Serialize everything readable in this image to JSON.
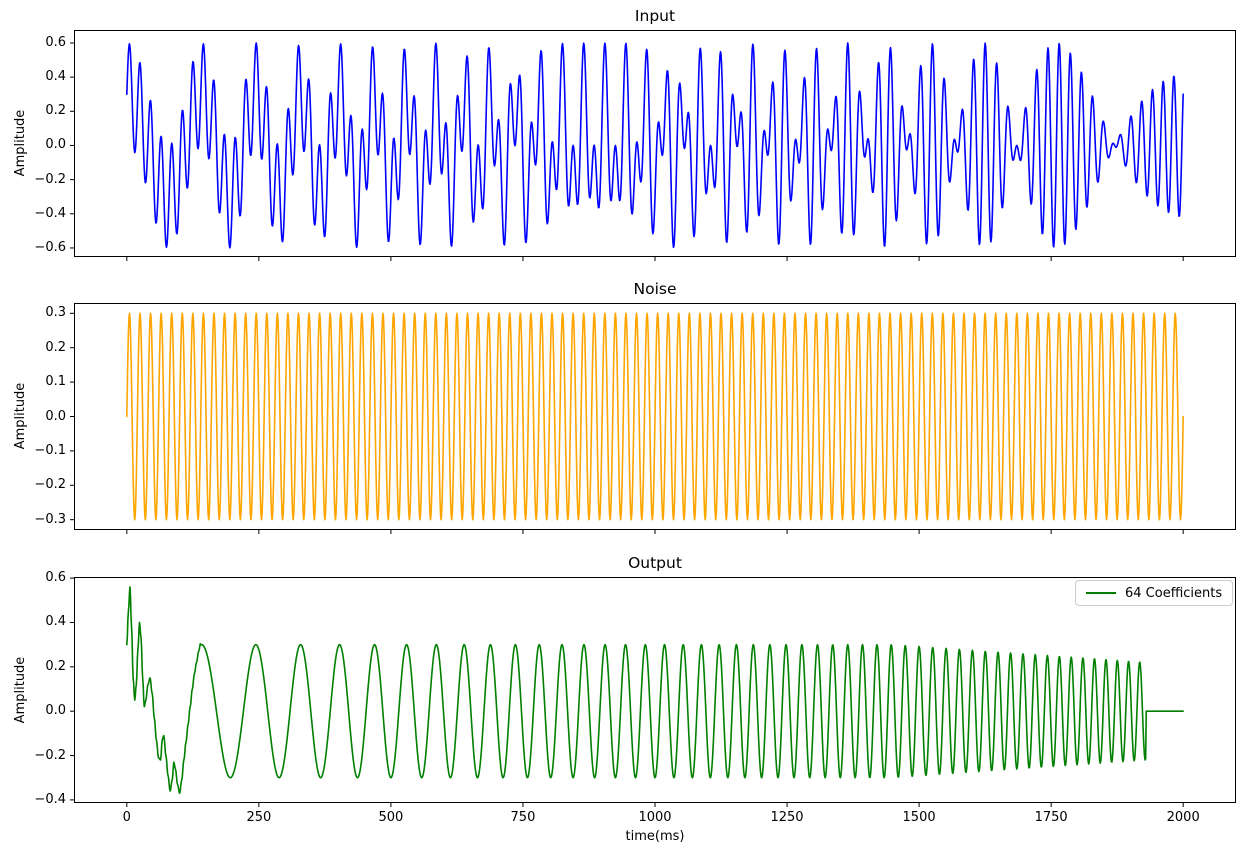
{
  "chart_data": [
    {
      "id": "input",
      "type": "line",
      "title": "Input",
      "ylabel": "Amplitude",
      "line_color": "#0000ff",
      "xlim": [
        -100,
        2100
      ],
      "ylim": [
        -0.653,
        0.676
      ],
      "xticks": [
        0,
        250,
        500,
        750,
        1000,
        1250,
        1500,
        1750,
        2000
      ],
      "yticks": [
        0.6,
        0.4,
        0.2,
        0.0,
        -0.2,
        -0.4,
        -0.6
      ],
      "ytick_decimals": 1,
      "show_x_tick_labels": false,
      "grid": false,
      "signal": {
        "kind": "sum",
        "duration_ms": 2000,
        "sample_interval_ms": 1,
        "components": [
          {
            "shape": "chirp",
            "func": "cos",
            "amplitude": 0.3,
            "start_freq_hz": 5.5,
            "sweep_hz_per_s": 22
          },
          {
            "shape": "sine",
            "amplitude": 0.3,
            "freq_hz": 50
          }
        ]
      }
    },
    {
      "id": "noise",
      "type": "line",
      "title": "Noise",
      "ylabel": "Amplitude",
      "line_color": "#ffa500",
      "xlim": [
        -100,
        2100
      ],
      "ylim": [
        -0.33,
        0.33
      ],
      "xticks": [
        0,
        250,
        500,
        750,
        1000,
        1250,
        1500,
        1750,
        2000
      ],
      "yticks": [
        0.3,
        0.2,
        0.1,
        0.0,
        -0.1,
        -0.2,
        -0.3
      ],
      "ytick_decimals": 1,
      "show_x_tick_labels": false,
      "grid": false,
      "signal": {
        "kind": "sum",
        "duration_ms": 2000,
        "sample_interval_ms": 1,
        "components": [
          {
            "shape": "sine",
            "amplitude": 0.3,
            "freq_hz": 50
          }
        ]
      }
    },
    {
      "id": "output",
      "type": "line",
      "title": "Output",
      "ylabel": "Amplitude",
      "xlabel": "time(ms)",
      "line_color": "#008000",
      "legend": {
        "label": "64 Coefficients",
        "position": "upper right"
      },
      "xlim": [
        -100,
        2100
      ],
      "ylim": [
        -0.414,
        0.605
      ],
      "xticks": [
        0,
        250,
        500,
        750,
        1000,
        1250,
        1500,
        1750,
        2000
      ],
      "yticks": [
        0.6,
        0.4,
        0.2,
        0.0,
        -0.2,
        -0.4
      ],
      "ytick_decimals": 1,
      "show_x_tick_labels": true,
      "grid": false,
      "signal": {
        "kind": "adaptive_output",
        "duration_ms": 2000,
        "sample_interval_ms": 1,
        "base": {
          "shape": "chirp",
          "func": "cos",
          "amplitude": 0.3,
          "start_freq_hz": 5.5,
          "sweep_hz_per_s": 22
        },
        "transient_anchors": [
          [
            0,
            0.3
          ],
          [
            3,
            0.45
          ],
          [
            6,
            0.56
          ],
          [
            9,
            0.38
          ],
          [
            12,
            0.15
          ],
          [
            15,
            0.05
          ],
          [
            18,
            0.12
          ],
          [
            21,
            0.28
          ],
          [
            24,
            0.4
          ],
          [
            27,
            0.33
          ],
          [
            30,
            0.15
          ],
          [
            33,
            0.02
          ],
          [
            36,
            0.05
          ],
          [
            40,
            0.12
          ],
          [
            44,
            0.15
          ],
          [
            48,
            0.08
          ],
          [
            52,
            -0.03
          ],
          [
            56,
            -0.13
          ],
          [
            60,
            -0.21
          ],
          [
            64,
            -0.22
          ],
          [
            67,
            -0.13
          ],
          [
            70,
            -0.11
          ],
          [
            74,
            -0.2
          ],
          [
            78,
            -0.29
          ],
          [
            82,
            -0.36
          ],
          [
            86,
            -0.31
          ],
          [
            89,
            -0.23
          ],
          [
            92,
            -0.26
          ],
          [
            96,
            -0.33
          ],
          [
            100,
            -0.37
          ],
          [
            104,
            -0.31
          ],
          [
            108,
            -0.22
          ],
          [
            112,
            -0.14
          ],
          [
            116,
            -0.06
          ],
          [
            120,
            0.02
          ],
          [
            124,
            0.1
          ],
          [
            128,
            0.17
          ],
          [
            132,
            0.22
          ],
          [
            136,
            0.27
          ],
          [
            140,
            0.31
          ]
        ],
        "amplitude_taper": {
          "start_ms": 1450,
          "end_ms": 1930,
          "end_amplitude": 0.22
        },
        "flat_after_ms": 1930,
        "flat_value": 0
      }
    }
  ]
}
